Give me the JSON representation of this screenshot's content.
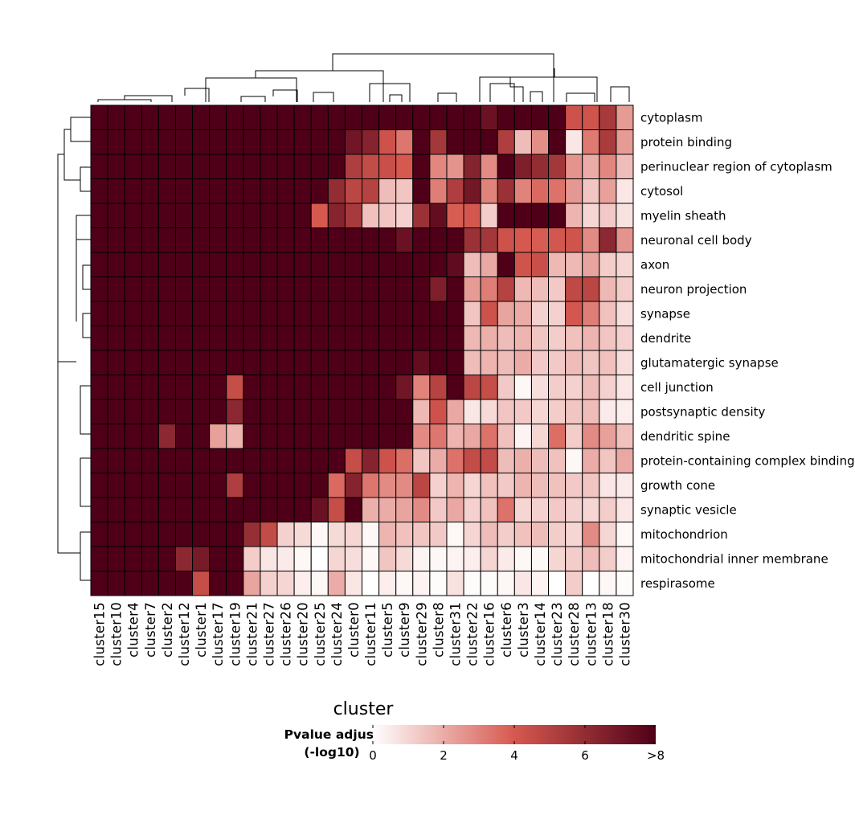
{
  "chart_data": {
    "type": "heatmap",
    "xlabel": "cluster",
    "ylabel": "",
    "colorbar": {
      "title_lines": [
        "Pvalue adjust",
        "(-log10)"
      ],
      "range": [
        0,
        8
      ],
      "ticks": [
        "0",
        "2",
        "4",
        "6",
        ">8"
      ],
      "colors": [
        "#ffffff",
        "#d6594f",
        "#4f0018"
      ]
    },
    "columns": [
      "cluster15",
      "cluster10",
      "cluster4",
      "cluster7",
      "cluster2",
      "cluster12",
      "cluster1",
      "cluster17",
      "cluster19",
      "cluster21",
      "cluster27",
      "cluster26",
      "cluster20",
      "cluster25",
      "cluster24",
      "cluster0",
      "cluster11",
      "cluster5",
      "cluster9",
      "cluster29",
      "cluster8",
      "cluster31",
      "cluster22",
      "cluster16",
      "cluster6",
      "cluster3",
      "cluster14",
      "cluster23",
      "cluster28",
      "cluster13",
      "cluster18",
      "cluster30"
    ],
    "rows": [
      "cytoplasm",
      "protein binding",
      "perinuclear region of cytoplasm",
      "cytosol",
      "myelin sheath",
      "neuronal cell body",
      "axon",
      "neuron projection",
      "synapse",
      "dendrite",
      "glutamatergic synapse",
      "cell junction",
      "postsynaptic density",
      "dendritic spine",
      "protein-containing complex binding",
      "growth cone",
      "synaptic vesicle",
      "mitochondrion",
      "mitochondrial inner membrane",
      "respirasome"
    ],
    "values": [
      [
        8,
        8,
        8,
        8,
        8,
        8,
        8,
        8,
        8,
        8,
        8,
        8,
        8,
        8,
        8,
        8,
        8,
        8,
        8,
        8,
        8,
        8,
        8,
        7.2,
        8,
        8,
        8,
        8,
        4.3,
        4.2,
        5.4,
        2.4
      ],
      [
        8,
        8,
        8,
        8,
        8,
        8,
        8,
        8,
        8,
        8,
        8,
        8,
        8,
        8,
        8,
        7,
        6.4,
        4.3,
        3.3,
        8,
        5.5,
        8,
        8,
        8,
        5.2,
        1.6,
        2.7,
        8,
        0.6,
        3.2,
        5.3,
        2.4
      ],
      [
        8,
        8,
        8,
        8,
        8,
        8,
        8,
        8,
        8,
        8,
        8,
        8,
        8,
        8,
        8,
        5.2,
        4.6,
        4.4,
        4,
        8,
        2.9,
        2.6,
        6.4,
        2.8,
        8,
        6.6,
        6,
        5.5,
        2.6,
        2,
        2.9,
        1.6
      ],
      [
        8,
        8,
        8,
        8,
        8,
        8,
        8,
        8,
        8,
        8,
        8,
        8,
        8,
        8,
        6,
        4.8,
        5,
        1.6,
        1.4,
        8,
        3.1,
        5.2,
        6.9,
        3,
        5.8,
        3,
        3.6,
        3.4,
        2.5,
        1.4,
        2.3,
        0.6
      ],
      [
        8,
        8,
        8,
        8,
        8,
        8,
        8,
        8,
        8,
        8,
        8,
        8,
        8,
        4,
        6.4,
        5.4,
        1.5,
        1.4,
        1.1,
        5.8,
        7.4,
        3.9,
        4.1,
        1.2,
        8,
        8,
        8,
        8,
        1.8,
        1,
        1.3,
        0.7
      ],
      [
        8,
        8,
        8,
        8,
        8,
        8,
        8,
        8,
        8,
        8,
        8,
        8,
        8,
        8,
        8,
        8,
        8,
        8,
        7.2,
        8,
        8,
        8,
        5.8,
        5.5,
        4.3,
        4,
        3.9,
        4.1,
        4.2,
        2.8,
        6.2,
        2.6
      ],
      [
        8,
        8,
        8,
        8,
        8,
        8,
        8,
        8,
        8,
        8,
        8,
        8,
        8,
        8,
        8,
        8,
        8,
        8,
        8,
        8,
        8,
        7.5,
        1.6,
        2.1,
        8,
        4.2,
        4.4,
        1.7,
        1.7,
        2.2,
        1.2,
        1
      ],
      [
        8,
        8,
        8,
        8,
        8,
        8,
        8,
        8,
        8,
        8,
        8,
        8,
        8,
        8,
        8,
        8,
        8,
        8,
        8,
        8,
        6.6,
        8,
        2.4,
        3.1,
        5,
        1.7,
        1.6,
        1.3,
        4.7,
        4.8,
        1.7,
        1.2
      ],
      [
        8,
        8,
        8,
        8,
        8,
        8,
        8,
        8,
        8,
        8,
        8,
        8,
        8,
        8,
        8,
        8,
        8,
        8,
        8,
        8,
        8,
        8,
        1.4,
        4.3,
        2.2,
        2,
        1.1,
        1.1,
        4.1,
        3.1,
        1.5,
        0.8
      ],
      [
        8,
        8,
        8,
        8,
        8,
        8,
        8,
        8,
        8,
        8,
        8,
        8,
        8,
        8,
        8,
        8,
        8,
        8,
        8,
        8,
        8,
        8,
        1.7,
        1.9,
        1.6,
        1.8,
        1.4,
        1.2,
        1.5,
        1.8,
        1.4,
        1.1
      ],
      [
        8,
        8,
        8,
        8,
        8,
        8,
        8,
        8,
        8,
        8,
        8,
        8,
        8,
        8,
        8,
        8,
        8,
        8,
        8,
        7.4,
        8,
        8,
        1.6,
        1.8,
        1.6,
        2,
        1.3,
        1.3,
        1.6,
        1.4,
        1.5,
        0.8
      ],
      [
        8,
        8,
        8,
        8,
        8,
        8,
        8,
        8,
        4.5,
        8,
        8,
        8,
        8,
        8,
        8,
        8,
        8,
        8,
        7,
        3,
        5,
        8,
        4.8,
        4.5,
        1.3,
        0.2,
        0.8,
        1.2,
        1.1,
        1.6,
        1.1,
        0.6
      ],
      [
        8,
        8,
        8,
        8,
        8,
        8,
        8,
        8,
        6.2,
        8,
        8,
        8,
        8,
        8,
        8,
        8,
        8,
        8,
        8,
        1.7,
        4.3,
        2.1,
        0.6,
        0.9,
        1.4,
        1.3,
        1,
        1.2,
        1.4,
        1.6,
        0.5,
        0.4
      ],
      [
        8,
        8,
        8,
        8,
        6.2,
        8,
        8,
        2.3,
        1.8,
        8,
        8,
        8,
        8,
        8,
        8,
        8,
        8,
        8,
        8,
        2.8,
        3.3,
        1.8,
        2.1,
        3.4,
        1.5,
        0.3,
        1,
        3.5,
        1.2,
        2.8,
        2.3,
        1.5
      ],
      [
        8,
        8,
        8,
        8,
        8,
        8,
        8,
        8,
        8,
        8,
        8,
        8,
        8,
        8,
        8,
        4.5,
        6.4,
        4.3,
        3.5,
        1.4,
        2,
        3.4,
        4.6,
        4.6,
        1.6,
        1.9,
        1.6,
        1.5,
        0.2,
        2,
        1.4,
        2.1
      ],
      [
        8,
        8,
        8,
        8,
        8,
        8,
        8,
        8,
        5.2,
        8,
        8,
        8,
        8,
        8,
        3.6,
        6.4,
        3.3,
        2.8,
        2.8,
        4.8,
        1.1,
        1.8,
        1,
        1.5,
        1.3,
        1.8,
        1.6,
        1.5,
        1.3,
        1.4,
        0.6,
        0.5
      ],
      [
        8,
        8,
        8,
        8,
        8,
        8,
        8,
        8,
        8,
        8,
        8,
        8,
        8,
        7.2,
        4.5,
        8,
        1.9,
        2,
        2.2,
        2.8,
        1.3,
        2.1,
        1.1,
        1.5,
        3.4,
        1,
        1.1,
        1.3,
        1.1,
        1,
        1.2,
        0.6
      ],
      [
        8,
        8,
        8,
        8,
        8,
        8,
        8,
        8,
        8,
        5.9,
        4.6,
        1.1,
        0.9,
        0.2,
        0.9,
        1,
        0.2,
        1.8,
        1.5,
        1.4,
        1.3,
        0.2,
        1,
        1.6,
        1.2,
        1.5,
        1.6,
        1.2,
        1,
        2.8,
        1,
        0.2
      ],
      [
        8,
        8,
        8,
        8,
        8,
        6.2,
        6.8,
        8,
        8,
        1.2,
        0.6,
        0.5,
        0.2,
        0,
        1,
        0.8,
        0.2,
        1.4,
        0.9,
        0.3,
        0.2,
        0.3,
        0.4,
        1,
        0.5,
        0.2,
        0.2,
        1,
        1.2,
        1.6,
        1.2,
        0.3
      ],
      [
        8,
        8,
        8,
        8,
        8,
        8,
        4.5,
        8,
        8,
        2.2,
        1.1,
        1,
        0.4,
        0.2,
        2,
        0.6,
        0,
        0.4,
        0.2,
        0.3,
        0.1,
        0.7,
        0.1,
        0.1,
        0.2,
        0.6,
        0.3,
        0,
        1.2,
        0,
        0.2,
        0.1
      ]
    ]
  }
}
